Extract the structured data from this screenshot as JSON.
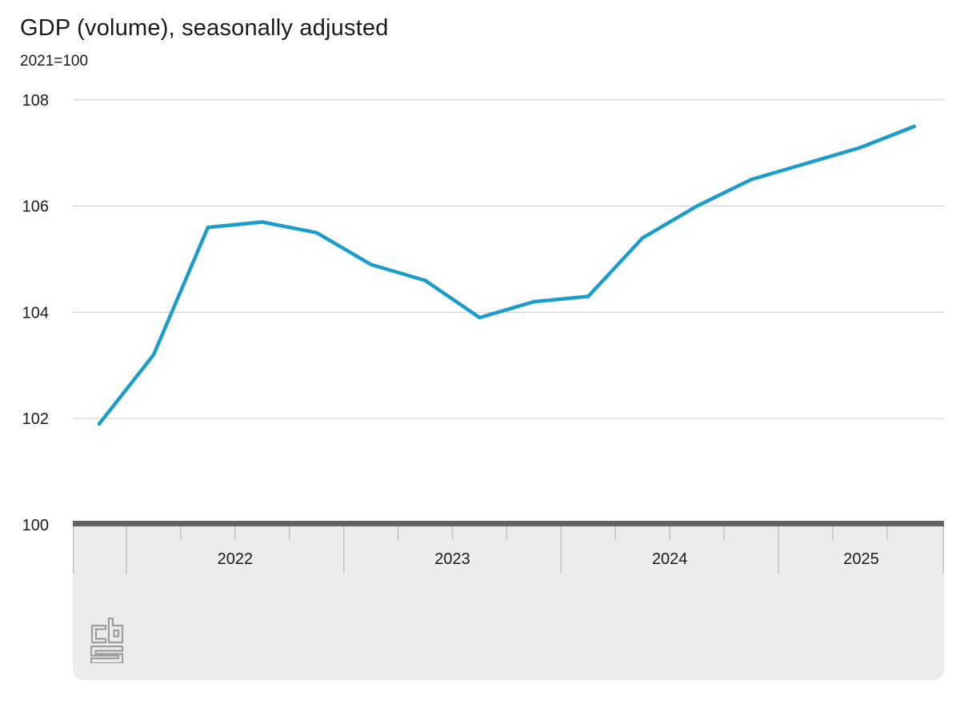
{
  "header": {
    "title": "GDP (volume), seasonally adjusted",
    "subtitle": "2021=100"
  },
  "chart_data": {
    "type": "line",
    "title": "GDP (volume), seasonally adjusted",
    "subtitle": "2021=100",
    "legend": "none",
    "grid": "horizontal",
    "categories": [
      "2021 Q4",
      "2022 Q1",
      "2022 Q2",
      "2022 Q3",
      "2022 Q4",
      "2023 Q1",
      "2023 Q2",
      "2023 Q3",
      "2023 Q4",
      "2024 Q1",
      "2024 Q2",
      "2024 Q3",
      "2024 Q4",
      "2025 Q1",
      "2025 Q2",
      "2025 Q3"
    ],
    "series": [
      {
        "name": "GDP volume, seasonally adjusted",
        "values": [
          101.9,
          103.2,
          105.6,
          105.7,
          105.5,
          104.9,
          104.6,
          103.9,
          104.2,
          104.3,
          105.4,
          106.0,
          106.5,
          106.8,
          107.1,
          107.5
        ]
      }
    ],
    "xlabel": "",
    "ylabel": "2021=100",
    "y_ticks": [
      100,
      102,
      104,
      106,
      108
    ],
    "ylim": [
      100,
      108
    ],
    "x_year_labels": [
      "2022",
      "2023",
      "2024",
      "2025"
    ],
    "quarters_per_year": 4,
    "colors": {
      "line": "#1b9dc9",
      "grid": "#c9c9c9",
      "axis_bar": "#636363",
      "axis_band": "#ececec",
      "tick": "#c2c2c2",
      "text": "#1a1a1a",
      "logo": "#9d9d9d"
    }
  },
  "footer": {
    "logo_name": "Statistics Netherlands (CBS) logo"
  }
}
